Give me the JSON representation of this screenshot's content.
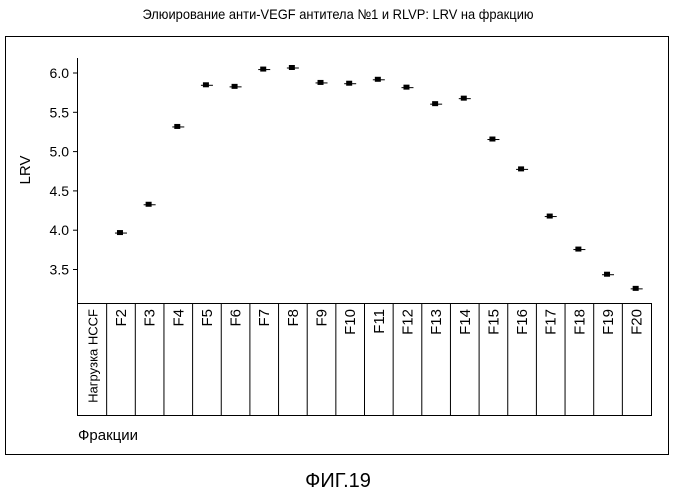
{
  "chart_data": {
    "type": "scatter",
    "title": "Элюирование анти-VEGF антитела №1 и RLVP: LRV на фракцию",
    "xlabel": "Фракции",
    "ylabel": "LRV",
    "categories": [
      "Нагрузка HCCF",
      "F2",
      "F3",
      "F4",
      "F5",
      "F6",
      "F7",
      "F8",
      "F9",
      "F10",
      "F11",
      "F12",
      "F13",
      "F14",
      "F15",
      "F16",
      "F17",
      "F18",
      "F19",
      "F20"
    ],
    "values": [
      null,
      3.97,
      4.33,
      5.32,
      5.85,
      5.83,
      6.05,
      6.07,
      5.88,
      5.87,
      5.92,
      5.82,
      5.61,
      5.68,
      5.16,
      4.78,
      4.18,
      3.76,
      3.44,
      3.26
    ],
    "yticks": [
      3.5,
      4.0,
      4.5,
      5.0,
      5.5,
      6.0
    ],
    "ylim": [
      3.0,
      6.2
    ],
    "grid": false,
    "legend": "none"
  },
  "caption": "ФИГ.19"
}
